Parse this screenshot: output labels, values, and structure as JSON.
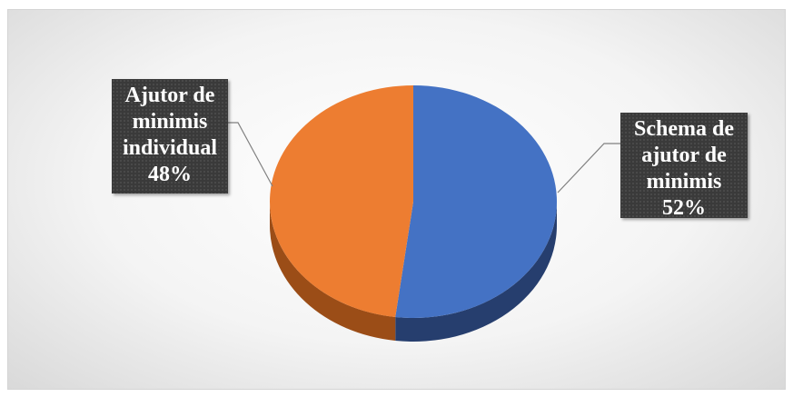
{
  "chart_data": {
    "type": "pie",
    "style": "3d",
    "series": [
      {
        "slices": [
          {
            "label_lines": [
              "Schema de",
              "ajutor de",
              "minimis"
            ],
            "percent_label": "52%",
            "value": 52,
            "color": "#4472c4",
            "side_color": "#263e6e"
          },
          {
            "label_lines": [
              "Ajutor de",
              "minimis",
              "individual"
            ],
            "percent_label": "48%",
            "value": 48,
            "color": "#ed7d31",
            "side_color": "#9b4d17"
          }
        ]
      }
    ],
    "legend": "none",
    "data_label_style": "callout"
  }
}
